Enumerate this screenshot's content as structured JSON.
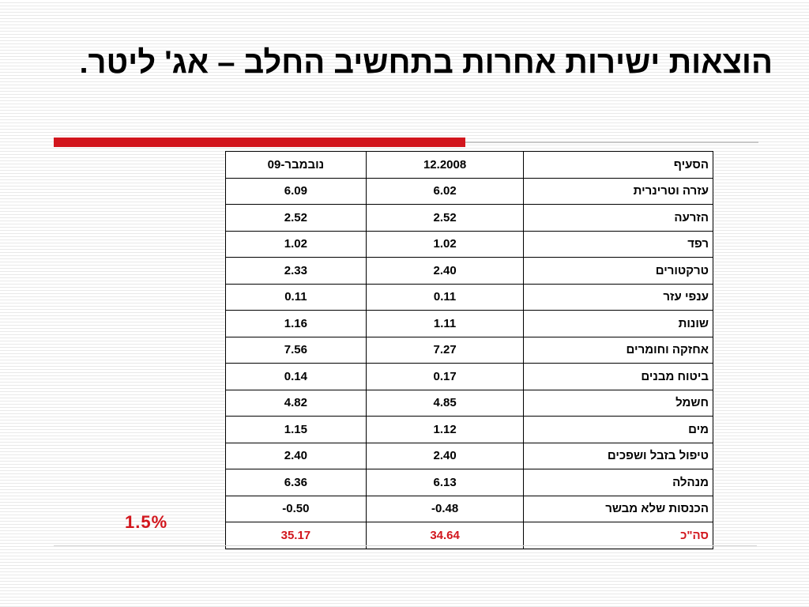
{
  "title": "הוצאות ישירות אחרות בתחשיב החלב – אג' ליטר.",
  "table": {
    "headers": [
      "הסעיף",
      "12.2008",
      "נובמבר-09"
    ],
    "rows": [
      {
        "item": "עזרה וטרינרית",
        "dec2008": "6.02",
        "nov09": "6.09"
      },
      {
        "item": "הזרעה",
        "dec2008": "2.52",
        "nov09": "2.52"
      },
      {
        "item": "רפד",
        "dec2008": "1.02",
        "nov09": "1.02"
      },
      {
        "item": "טרקטורים",
        "dec2008": "2.40",
        "nov09": "2.33"
      },
      {
        "item": "ענפי עזר",
        "dec2008": "0.11",
        "nov09": "0.11"
      },
      {
        "item": "שונות",
        "dec2008": "1.11",
        "nov09": "1.16"
      },
      {
        "item": "אחזקה וחומרים",
        "dec2008": "7.27",
        "nov09": "7.56"
      },
      {
        "item": "ביטוח מבנים",
        "dec2008": "0.17",
        "nov09": "0.14"
      },
      {
        "item": "חשמל",
        "dec2008": "4.85",
        "nov09": "4.82"
      },
      {
        "item": "מים",
        "dec2008": "1.12",
        "nov09": "1.15"
      },
      {
        "item": "טיפול בזבל ושפכים",
        "dec2008": "2.40",
        "nov09": "2.40"
      },
      {
        "item": "מנהלה",
        "dec2008": "6.13",
        "nov09": "6.36"
      },
      {
        "item": "הכנסות שלא מבשר",
        "dec2008": "-0.48",
        "nov09": "-0.50"
      }
    ],
    "total": {
      "item": "סה\"כ",
      "dec2008": "34.64",
      "nov09": "35.17"
    }
  },
  "change_pct": "1.5%",
  "colors": {
    "accent": "#d2161d",
    "text": "#000000"
  }
}
